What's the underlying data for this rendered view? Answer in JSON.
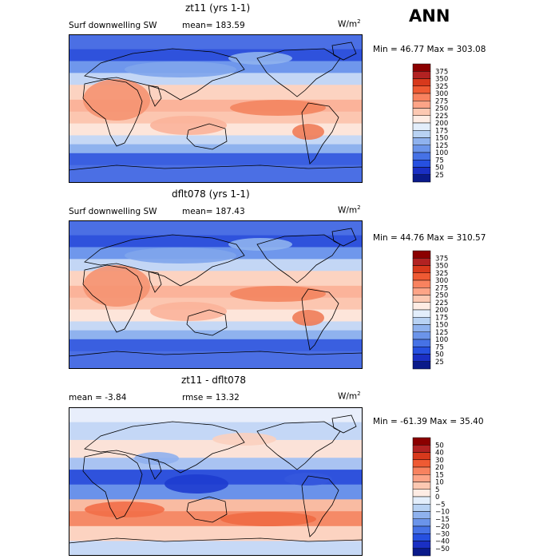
{
  "page_title": "ANN",
  "panels": [
    {
      "title": "zt11 (yrs 1-1)",
      "left_label": "Surf downwelling SW",
      "stat_label": "mean=",
      "stat_value": "183.59",
      "units": "W/m",
      "units_exp": "2",
      "minmax": "Min =  46.77 Max = 303.08",
      "levels": [
        "375",
        "350",
        "325",
        "300",
        "275",
        "250",
        "225",
        "200",
        "175",
        "150",
        "125",
        "100",
        "75",
        "50",
        "25"
      ],
      "colors": [
        "#8b0000",
        "#b22222",
        "#d8391c",
        "#ef5a33",
        "#f8825f",
        "#fda487",
        "#fcc8b2",
        "#feece4",
        "#e3eefb",
        "#b8d2f3",
        "#8fb2ee",
        "#6b94ea",
        "#4672e6",
        "#2650e0",
        "#1a2fc4",
        "#0a1a8a"
      ]
    },
    {
      "title": "dflt078 (yrs 1-1)",
      "left_label": "Surf downwelling SW",
      "stat_label": "mean=",
      "stat_value": "187.43",
      "units": "W/m",
      "units_exp": "2",
      "minmax": "Min =  44.76 Max = 310.57",
      "levels": [
        "375",
        "350",
        "325",
        "300",
        "275",
        "250",
        "225",
        "200",
        "175",
        "150",
        "125",
        "100",
        "75",
        "50",
        "25"
      ],
      "colors": [
        "#8b0000",
        "#b22222",
        "#d8391c",
        "#ef5a33",
        "#f8825f",
        "#fda487",
        "#fcc8b2",
        "#feece4",
        "#e3eefb",
        "#b8d2f3",
        "#8fb2ee",
        "#6b94ea",
        "#4672e6",
        "#2650e0",
        "#1a2fc4",
        "#0a1a8a"
      ]
    },
    {
      "title": "zt11 - dflt078",
      "left_label": "mean =   -3.84",
      "stat_label": "rmse =",
      "stat_value": "13.32",
      "units": "W/m",
      "units_exp": "2",
      "minmax": "Min = -61.39 Max =  35.40",
      "levels": [
        "50",
        "40",
        "30",
        "20",
        "15",
        "10",
        "5",
        "0",
        "−5",
        "−10",
        "−15",
        "−20",
        "−30",
        "−40",
        "−50"
      ],
      "colors": [
        "#8b0000",
        "#b22222",
        "#d8391c",
        "#ef5a33",
        "#f8825f",
        "#fda487",
        "#fcc8b2",
        "#feece4",
        "#e3eefb",
        "#b8d2f3",
        "#8fb2ee",
        "#6b94ea",
        "#4672e6",
        "#2650e0",
        "#1a2fc4",
        "#0a1a8a"
      ]
    }
  ]
}
